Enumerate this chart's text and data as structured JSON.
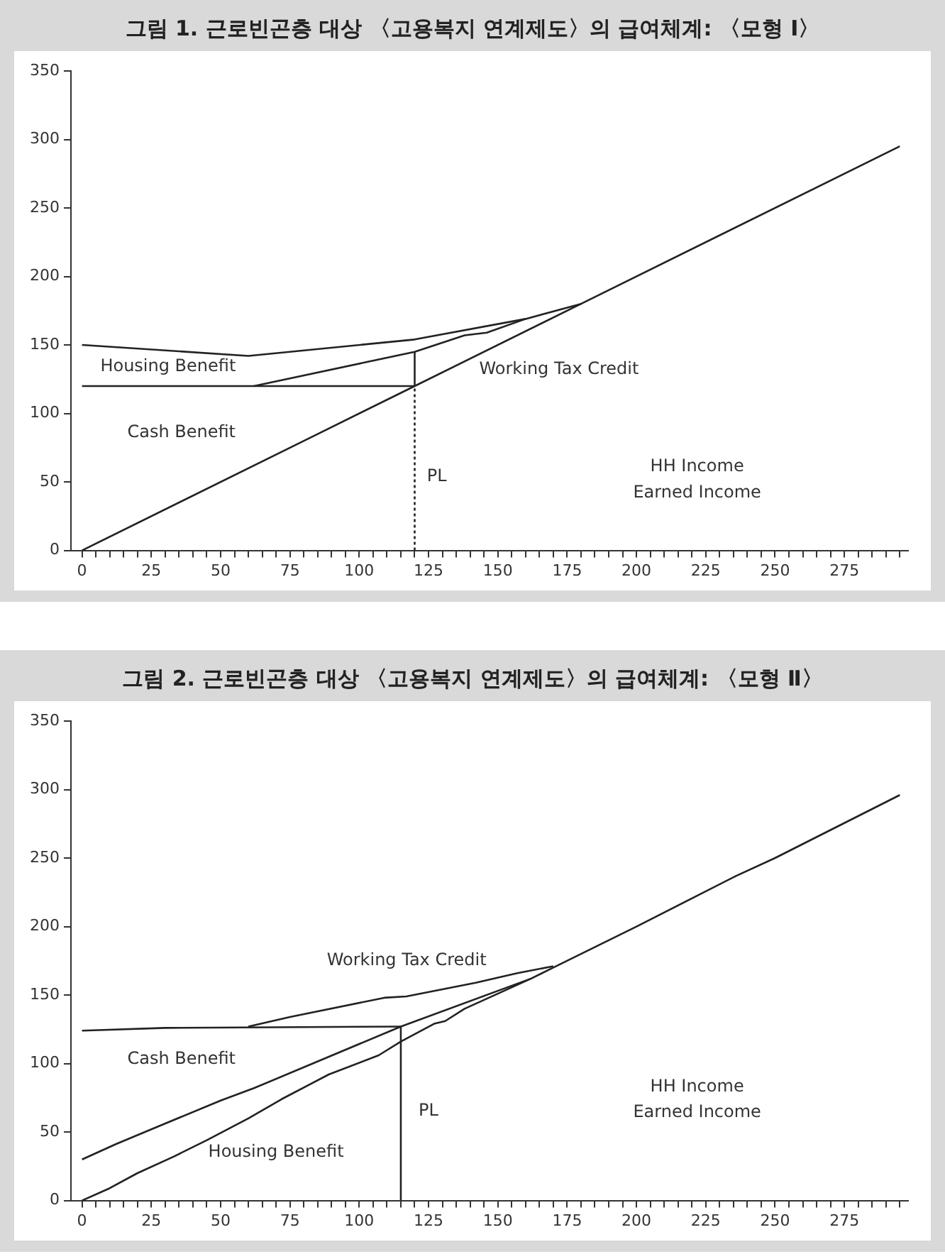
{
  "chart_data": [
    {
      "type": "line",
      "title": "그림 1. 근로빈곤층 대상 〈고용복지 연계제도〉의 급여체계: 〈모형 Ⅰ〉",
      "marker": "none",
      "grid": false,
      "legend": false,
      "xlim": [
        -4,
        298
      ],
      "ylim": [
        0,
        350
      ],
      "yticks": [
        0,
        50,
        100,
        150,
        200,
        250,
        300,
        350
      ],
      "xticks": [
        0,
        {
          "value": 5,
          "label": null
        },
        {
          "value": 10,
          "label": null
        },
        {
          "value": 15,
          "label": null
        },
        {
          "value": 20,
          "label": null
        },
        25,
        {
          "value": 30,
          "label": null
        },
        {
          "value": 35,
          "label": null
        },
        {
          "value": 40,
          "label": null
        },
        {
          "value": 45,
          "label": null
        },
        50,
        {
          "value": 55,
          "label": null
        },
        {
          "value": 60,
          "label": null
        },
        {
          "value": 65,
          "label": null
        },
        {
          "value": 70,
          "label": null
        },
        75,
        {
          "value": 80,
          "label": null
        },
        {
          "value": 85,
          "label": null
        },
        {
          "value": 90,
          "label": null
        },
        {
          "value": 95,
          "label": null
        },
        100,
        {
          "value": 105,
          "label": null
        },
        {
          "value": 110,
          "label": null
        },
        {
          "value": 115,
          "label": null
        },
        {
          "value": 120,
          "label": null
        },
        125,
        {
          "value": 130,
          "label": null
        },
        {
          "value": 135,
          "label": null
        },
        {
          "value": 140,
          "label": null
        },
        {
          "value": 145,
          "label": null
        },
        150,
        {
          "value": 155,
          "label": null
        },
        {
          "value": 160,
          "label": null
        },
        {
          "value": 165,
          "label": null
        },
        {
          "value": 170,
          "label": null
        },
        175,
        {
          "value": 180,
          "label": null
        },
        {
          "value": 185,
          "label": null
        },
        {
          "value": 190,
          "label": null
        },
        {
          "value": 195,
          "label": null
        },
        200,
        {
          "value": 205,
          "label": null
        },
        {
          "value": 210,
          "label": null
        },
        {
          "value": 215,
          "label": null
        },
        {
          "value": 220,
          "label": null
        },
        225,
        {
          "value": 230,
          "label": null
        },
        {
          "value": 235,
          "label": null
        },
        {
          "value": 240,
          "label": null
        },
        {
          "value": 245,
          "label": null
        },
        250,
        {
          "value": 255,
          "label": null
        },
        {
          "value": 260,
          "label": null
        },
        {
          "value": 265,
          "label": null
        },
        {
          "value": 270,
          "label": null
        },
        275,
        {
          "value": 280,
          "label": null
        },
        {
          "value": 285,
          "label": null
        },
        {
          "value": 290,
          "label": null
        },
        {
          "value": 295,
          "label": null
        }
      ],
      "series": [
        {
          "color": "#222222",
          "x": [
            0,
            82,
            120,
            180,
            295
          ],
          "values": [
            0,
            82,
            120,
            180,
            295
          ]
        },
        {
          "color": "#222222",
          "x": [
            0,
            60,
            120,
            160,
            180
          ],
          "values": [
            150,
            142,
            154,
            169,
            180
          ]
        },
        {
          "color": "#222222",
          "x": [
            62,
            120,
            138,
            146,
            160
          ],
          "values": [
            120,
            145,
            157,
            159,
            169
          ]
        },
        {
          "color": "#222222",
          "x": [
            0,
            120
          ],
          "values": [
            120,
            120
          ]
        },
        {
          "color": "#222222",
          "x": [
            120,
            120
          ],
          "values": [
            120,
            145
          ]
        },
        {
          "color": "#222222",
          "x": [
            120,
            120
          ],
          "values": [
            0,
            120
          ],
          "line_style": "dotted"
        }
      ],
      "annotations": [
        "Housing Benefit",
        "Working Tax Credit",
        "Cash Benefit",
        "PL",
        "HH Income",
        "Earned Income"
      ]
    },
    {
      "type": "line",
      "title": "그림 2. 근로빈곤층 대상 〈고용복지 연계제도〉의 급여체계: 〈모형 Ⅱ〉",
      "marker": "none",
      "grid": false,
      "legend": false,
      "xlim": [
        -4,
        298
      ],
      "ylim": [
        0,
        350
      ],
      "yticks": [
        0,
        50,
        100,
        150,
        200,
        250,
        300,
        350
      ],
      "xticks": [
        0,
        {
          "value": 5,
          "label": null
        },
        {
          "value": 10,
          "label": null
        },
        {
          "value": 15,
          "label": null
        },
        {
          "value": 20,
          "label": null
        },
        25,
        {
          "value": 30,
          "label": null
        },
        {
          "value": 35,
          "label": null
        },
        {
          "value": 40,
          "label": null
        },
        {
          "value": 45,
          "label": null
        },
        50,
        {
          "value": 55,
          "label": null
        },
        {
          "value": 60,
          "label": null
        },
        {
          "value": 65,
          "label": null
        },
        {
          "value": 70,
          "label": null
        },
        75,
        {
          "value": 80,
          "label": null
        },
        {
          "value": 85,
          "label": null
        },
        {
          "value": 90,
          "label": null
        },
        {
          "value": 95,
          "label": null
        },
        100,
        {
          "value": 105,
          "label": null
        },
        {
          "value": 110,
          "label": null
        },
        {
          "value": 115,
          "label": null
        },
        {
          "value": 120,
          "label": null
        },
        125,
        {
          "value": 130,
          "label": null
        },
        {
          "value": 135,
          "label": null
        },
        {
          "value": 140,
          "label": null
        },
        {
          "value": 145,
          "label": null
        },
        150,
        {
          "value": 155,
          "label": null
        },
        {
          "value": 160,
          "label": null
        },
        {
          "value": 165,
          "label": null
        },
        {
          "value": 170,
          "label": null
        },
        175,
        {
          "value": 180,
          "label": null
        },
        {
          "value": 185,
          "label": null
        },
        {
          "value": 190,
          "label": null
        },
        {
          "value": 195,
          "label": null
        },
        200,
        {
          "value": 205,
          "label": null
        },
        {
          "value": 210,
          "label": null
        },
        {
          "value": 215,
          "label": null
        },
        {
          "value": 220,
          "label": null
        },
        225,
        {
          "value": 230,
          "label": null
        },
        {
          "value": 235,
          "label": null
        },
        {
          "value": 240,
          "label": null
        },
        {
          "value": 245,
          "label": null
        },
        250,
        {
          "value": 255,
          "label": null
        },
        {
          "value": 260,
          "label": null
        },
        {
          "value": 265,
          "label": null
        },
        {
          "value": 270,
          "label": null
        },
        275,
        {
          "value": 280,
          "label": null
        },
        {
          "value": 285,
          "label": null
        },
        {
          "value": 290,
          "label": null
        },
        {
          "value": 295,
          "label": null
        }
      ],
      "series": [
        {
          "color": "#222222",
          "x": [
            0,
            10,
            20,
            33,
            45,
            60,
            72,
            89,
            107,
            115,
            127,
            131,
            138,
            162,
            170,
            200,
            236,
            250,
            295
          ],
          "values": [
            0,
            9,
            20,
            32,
            44,
            60,
            74,
            92,
            106,
            116,
            129,
            131,
            140,
            162,
            170,
            200,
            237,
            250,
            296
          ]
        },
        {
          "color": "#222222",
          "x": [
            0,
            12,
            25,
            50,
            62,
            115,
            162
          ],
          "values": [
            30,
            41,
            52,
            73,
            82,
            127,
            162
          ]
        },
        {
          "color": "#222222",
          "x": [
            0,
            30,
            115
          ],
          "values": [
            124,
            126,
            127
          ]
        },
        {
          "color": "#222222",
          "x": [
            60,
            75,
            109,
            117,
            142,
            157,
            170
          ],
          "values": [
            127,
            134,
            148,
            149,
            159,
            166,
            171
          ]
        },
        {
          "color": "#222222",
          "x": [
            115,
            115
          ],
          "values": [
            0,
            127
          ]
        }
      ],
      "annotations": [
        "Working Tax Credit",
        "Cash Benefit",
        "Housing Benefit",
        "PL",
        "HH Income",
        "Earned Income"
      ]
    }
  ]
}
